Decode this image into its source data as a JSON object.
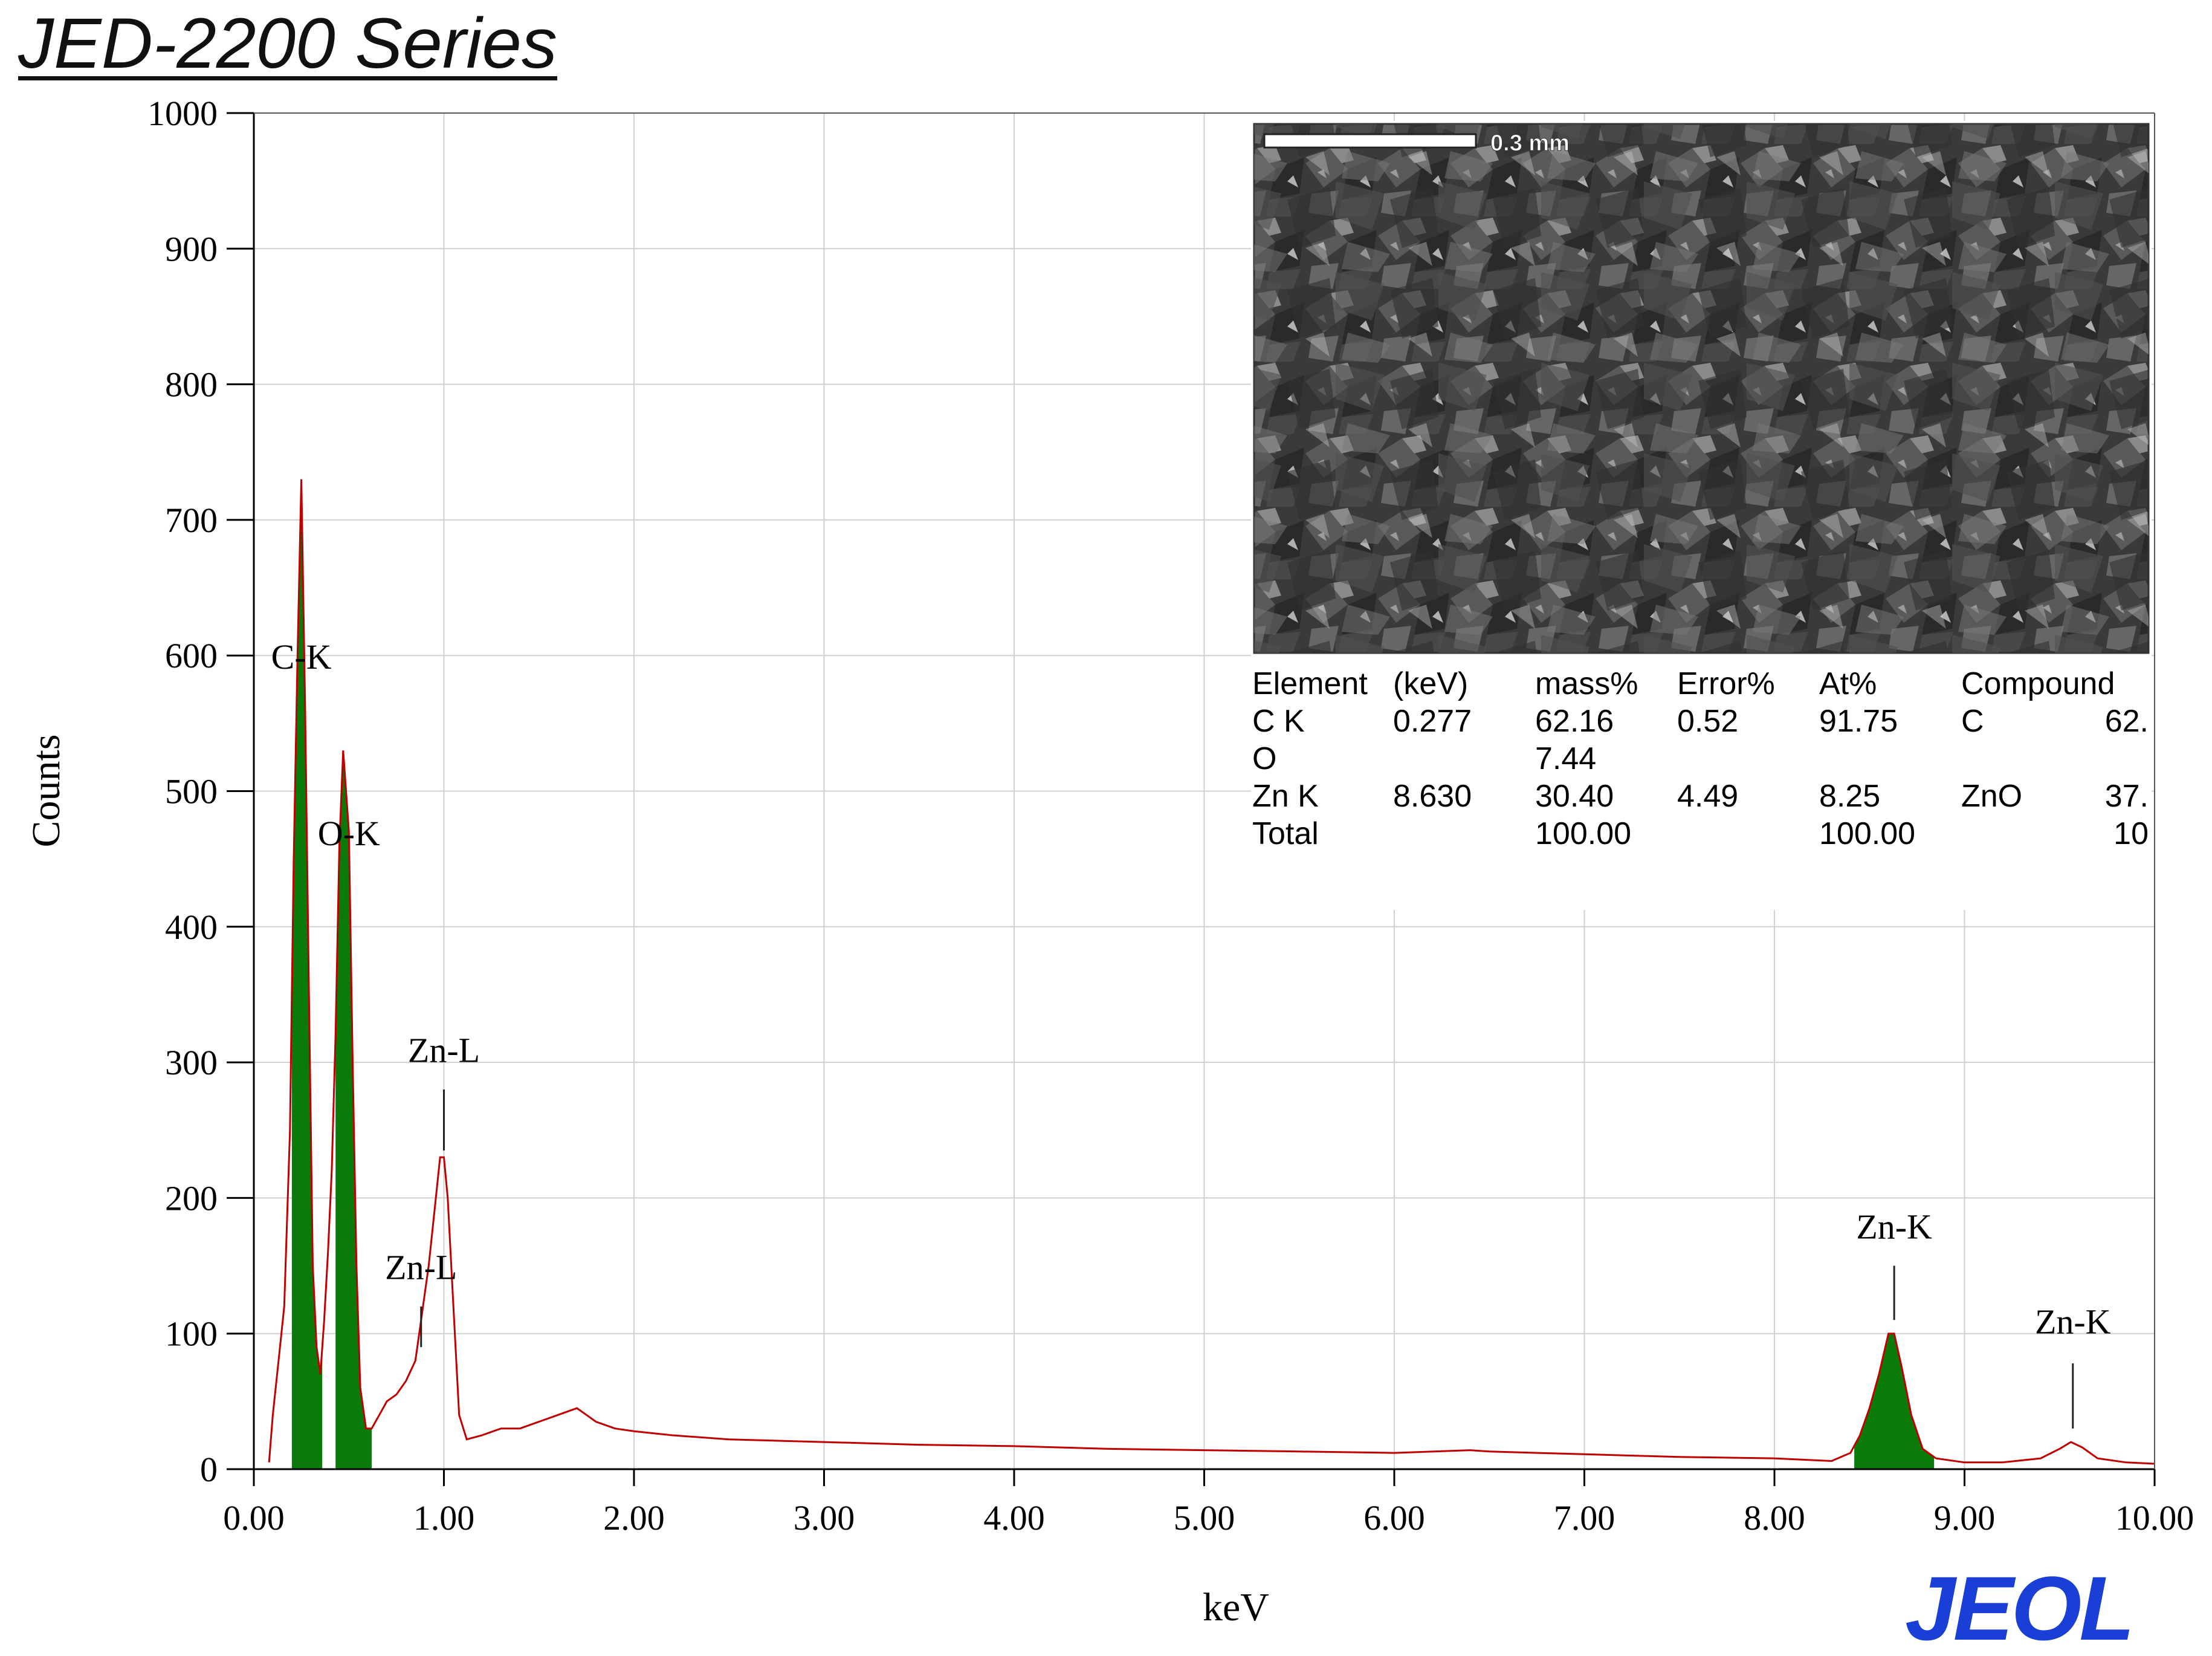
{
  "header": {
    "series_title": "JED-2200 Series"
  },
  "logo": {
    "text": "JEOL",
    "color": "#1a3fd6"
  },
  "chart_data": {
    "type": "line",
    "title": "",
    "xlabel": "keV",
    "ylabel": "Counts",
    "xlim": [
      0,
      10
    ],
    "ylim": [
      0,
      1000
    ],
    "grid": true,
    "xticks": [
      "0.00",
      "1.00",
      "2.00",
      "3.00",
      "4.00",
      "5.00",
      "6.00",
      "7.00",
      "8.00",
      "9.00",
      "10.00"
    ],
    "yticks": [
      "0",
      "100",
      "200",
      "300",
      "400",
      "500",
      "600",
      "700",
      "800",
      "900",
      "1000"
    ],
    "line_color": "#c00000",
    "fill_color": "#0a7a0a",
    "spectrum": {
      "x": [
        0.08,
        0.1,
        0.13,
        0.16,
        0.19,
        0.21,
        0.23,
        0.25,
        0.27,
        0.29,
        0.31,
        0.33,
        0.35,
        0.37,
        0.39,
        0.41,
        0.43,
        0.45,
        0.47,
        0.5,
        0.52,
        0.54,
        0.56,
        0.59,
        0.62,
        0.66,
        0.7,
        0.75,
        0.8,
        0.85,
        0.88,
        0.9,
        0.92,
        0.95,
        0.98,
        1.0,
        1.02,
        1.05,
        1.08,
        1.12,
        1.2,
        1.3,
        1.4,
        1.5,
        1.6,
        1.7,
        1.75,
        1.8,
        1.9,
        2.0,
        2.2,
        2.5,
        3.0,
        3.5,
        4.0,
        4.5,
        5.0,
        5.5,
        6.0,
        6.4,
        6.5,
        7.0,
        7.5,
        8.0,
        8.3,
        8.4,
        8.45,
        8.5,
        8.55,
        8.6,
        8.63,
        8.67,
        8.72,
        8.78,
        8.85,
        9.0,
        9.2,
        9.4,
        9.5,
        9.56,
        9.62,
        9.7,
        9.85,
        10.0
      ],
      "y": [
        5,
        40,
        80,
        120,
        250,
        450,
        600,
        730,
        560,
        350,
        150,
        90,
        70,
        110,
        160,
        220,
        320,
        460,
        530,
        470,
        300,
        150,
        60,
        30,
        30,
        40,
        50,
        55,
        65,
        80,
        110,
        130,
        150,
        190,
        230,
        230,
        200,
        120,
        40,
        22,
        25,
        30,
        30,
        35,
        40,
        45,
        40,
        35,
        30,
        28,
        25,
        22,
        20,
        18,
        17,
        15,
        14,
        13,
        12,
        14,
        13,
        11,
        9,
        8,
        6,
        12,
        25,
        45,
        70,
        100,
        100,
        75,
        40,
        15,
        8,
        5,
        5,
        8,
        15,
        20,
        16,
        8,
        5,
        4
      ]
    },
    "filled_regions": [
      {
        "name": "C-K",
        "x_start": 0.2,
        "x_end": 0.36
      },
      {
        "name": "O-K",
        "x_start": 0.43,
        "x_end": 0.62
      },
      {
        "name": "Zn-K",
        "x_start": 8.42,
        "x_end": 8.84
      }
    ],
    "annotations": [
      {
        "text": "C-K",
        "x": 0.25,
        "y": 600,
        "marker": false
      },
      {
        "text": "O-K",
        "x": 0.5,
        "y": 470,
        "marker": false
      },
      {
        "text": "Zn-L",
        "x": 1.0,
        "y": 310,
        "marker": true,
        "line_from": 280,
        "line_to": 235
      },
      {
        "text": "Zn-L",
        "x": 0.88,
        "y": 150,
        "marker": true,
        "line_from": 120,
        "line_to": 90
      },
      {
        "text": "Zn-K",
        "x": 8.63,
        "y": 180,
        "marker": true,
        "line_from": 150,
        "line_to": 110
      },
      {
        "text": "Zn-K",
        "x": 9.57,
        "y": 110,
        "marker": true,
        "line_from": 78,
        "line_to": 30
      }
    ]
  },
  "inset": {
    "scale_label": "0.3 mm",
    "table": {
      "headers": [
        "Element",
        "(keV)",
        "mass%",
        "Error%",
        "At%",
        "Compound",
        ""
      ],
      "rows": [
        [
          "C  K",
          "0.277",
          "62.16",
          "0.52",
          "91.75",
          "C",
          "62."
        ],
        [
          "O",
          "",
          "7.44",
          "",
          "",
          "",
          ""
        ],
        [
          "Zn K",
          "8.630",
          "30.40",
          "4.49",
          "8.25",
          "ZnO",
          "37."
        ],
        [
          "Total",
          "",
          "100.00",
          "",
          "100.00",
          "",
          "10"
        ]
      ]
    }
  }
}
